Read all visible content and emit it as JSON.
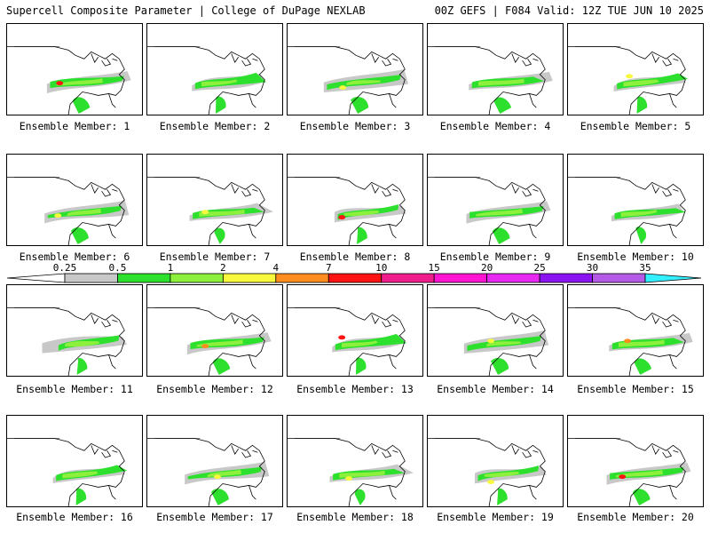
{
  "header": {
    "left": "Supercell Composite Parameter | College of DuPage NEXLAB",
    "right": "00Z GEFS | F084 Valid: 12Z TUE JUN 10 2025"
  },
  "members": [
    {
      "label": "Ensemble Member: 1"
    },
    {
      "label": "Ensemble Member: 2"
    },
    {
      "label": "Ensemble Member: 3"
    },
    {
      "label": "Ensemble Member: 4"
    },
    {
      "label": "Ensemble Member: 5"
    },
    {
      "label": "Ensemble Member: 6"
    },
    {
      "label": "Ensemble Member: 7"
    },
    {
      "label": "Ensemble Member: 8"
    },
    {
      "label": "Ensemble Member: 9"
    },
    {
      "label": "Ensemble Member: 10"
    },
    {
      "label": "Ensemble Member: 11"
    },
    {
      "label": "Ensemble Member: 12"
    },
    {
      "label": "Ensemble Member: 13"
    },
    {
      "label": "Ensemble Member: 14"
    },
    {
      "label": "Ensemble Member: 15"
    },
    {
      "label": "Ensemble Member: 16"
    },
    {
      "label": "Ensemble Member: 17"
    },
    {
      "label": "Ensemble Member: 18"
    },
    {
      "label": "Ensemble Member: 19"
    },
    {
      "label": "Ensemble Member: 20"
    }
  ],
  "colorbar": {
    "levels": [
      {
        "value": "0.25",
        "color": "#c8c8c8"
      },
      {
        "value": "0.5",
        "color": "#2ee02e"
      },
      {
        "value": "1",
        "color": "#8cf03c"
      },
      {
        "value": "2",
        "color": "#f8f83c"
      },
      {
        "value": "4",
        "color": "#ff8c1e"
      },
      {
        "value": "7",
        "color": "#ff1414"
      },
      {
        "value": "10",
        "color": "#f01e8c"
      },
      {
        "value": "15",
        "color": "#ff14d2"
      },
      {
        "value": "20",
        "color": "#e628f0"
      },
      {
        "value": "25",
        "color": "#8c14f0"
      },
      {
        "value": "30",
        "color": "#b45ae6"
      },
      {
        "value": "35",
        "color": "#32f0ff"
      }
    ],
    "outline_color": "#000000"
  },
  "colors": {
    "low_gray": "#c8c8c8",
    "green": "#2ee02e",
    "light_green": "#8cf03c",
    "yellow": "#f8f83c",
    "orange": "#ff8c1e",
    "red": "#ff1414"
  }
}
